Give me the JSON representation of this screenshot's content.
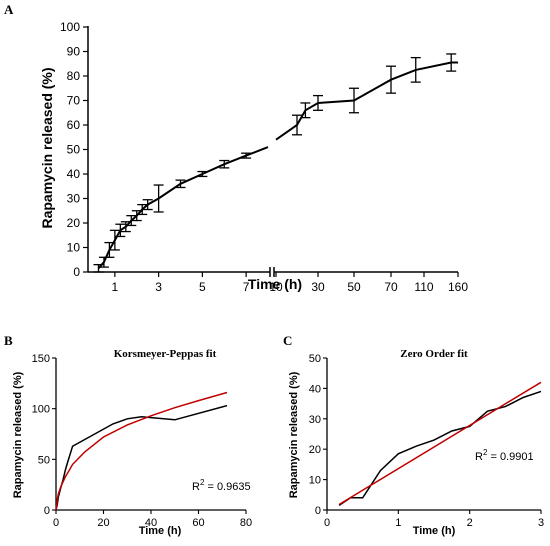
{
  "chart_data": [
    {
      "panel": "A",
      "type": "line",
      "title": "",
      "xlabel": "Time (h)",
      "ylabel": "Rapamycin released (%)",
      "ylim": [
        0,
        100
      ],
      "yticks": [
        0,
        10,
        20,
        30,
        40,
        50,
        60,
        70,
        80,
        90,
        100
      ],
      "axis_break": true,
      "segment1": {
        "xlim": [
          0,
          8
        ],
        "xticks": [
          1,
          3,
          5,
          7
        ],
        "points": [
          {
            "x": 0.25,
            "y": 1.5,
            "err": 1.5
          },
          {
            "x": 0.5,
            "y": 4,
            "err": 2
          },
          {
            "x": 0.75,
            "y": 9,
            "err": 3
          },
          {
            "x": 1,
            "y": 13,
            "err": 4
          },
          {
            "x": 1.25,
            "y": 17,
            "err": 2.5
          },
          {
            "x": 1.5,
            "y": 18.5,
            "err": 2
          },
          {
            "x": 1.75,
            "y": 21,
            "err": 2
          },
          {
            "x": 2,
            "y": 23,
            "err": 2
          },
          {
            "x": 2.25,
            "y": 25.5,
            "err": 2
          },
          {
            "x": 2.5,
            "y": 27.5,
            "err": 2
          },
          {
            "x": 3,
            "y": 30,
            "err": 5.5
          },
          {
            "x": 4,
            "y": 36,
            "err": 1.5
          },
          {
            "x": 5,
            "y": 40,
            "err": 1
          },
          {
            "x": 6,
            "y": 44,
            "err": 1.5
          },
          {
            "x": 7,
            "y": 47.5,
            "err": 1
          },
          {
            "x": 8,
            "y": 51,
            "err": 0
          }
        ]
      },
      "segment2": {
        "xlim": [
          10,
          160
        ],
        "xticks": [
          10,
          30,
          50,
          70,
          110,
          160
        ],
        "points": [
          {
            "x": 10,
            "y": 54,
            "err": 0
          },
          {
            "x": 20,
            "y": 60,
            "err": 4
          },
          {
            "x": 24,
            "y": 66,
            "err": 3
          },
          {
            "x": 30,
            "y": 69,
            "err": 3
          },
          {
            "x": 50,
            "y": 70,
            "err": 5
          },
          {
            "x": 70,
            "y": 78.5,
            "err": 5.5
          },
          {
            "x": 100,
            "y": 82.5,
            "err": 5
          },
          {
            "x": 150,
            "y": 85.5,
            "err": 3.5
          },
          {
            "x": 160,
            "y": 85.5,
            "err": 0
          }
        ]
      }
    },
    {
      "panel": "B",
      "type": "line",
      "title": "Korsmeyer-Peppas fit",
      "xlabel": "Time (h)",
      "ylabel": "Rapamycin released (%)",
      "xlim": [
        0,
        80
      ],
      "ylim": [
        0,
        150
      ],
      "xticks": [
        0,
        20,
        40,
        60,
        80
      ],
      "yticks": [
        0,
        50,
        100,
        150
      ],
      "annotation": {
        "prefix": "R",
        "superscript": "2",
        "suffix": " = 0.9635"
      },
      "series": [
        {
          "color": "#000000",
          "x": [
            0,
            0.5,
            1,
            2,
            3,
            4,
            5,
            7,
            24,
            30,
            36,
            50,
            72
          ],
          "y": [
            0,
            5,
            13,
            22,
            30,
            40,
            48,
            63,
            85,
            90,
            92,
            89,
            103
          ]
        },
        {
          "color": "#c00000",
          "x": [
            0,
            0.5,
            1,
            2,
            4,
            7,
            12,
            20,
            30,
            40,
            50,
            60,
            72
          ],
          "y": [
            0,
            10,
            16,
            23,
            33,
            45,
            57,
            72,
            84,
            93,
            101,
            108,
            116
          ]
        }
      ]
    },
    {
      "panel": "C",
      "type": "line",
      "title": "Zero Order fit",
      "xlabel": "Time (h)",
      "ylabel": "Rapamycin released (%)",
      "xlim": [
        0,
        3
      ],
      "ylim": [
        0,
        50
      ],
      "xticks": [
        0,
        1,
        2,
        3
      ],
      "yticks": [
        0,
        10,
        20,
        30,
        40,
        50
      ],
      "annotation": {
        "prefix": "R",
        "superscript": "2",
        "suffix": " = 0.9901"
      },
      "series": [
        {
          "color": "#000000",
          "x": [
            0.17,
            0.33,
            0.5,
            0.75,
            1,
            1.25,
            1.5,
            1.75,
            2,
            2.25,
            2.5,
            2.75,
            3
          ],
          "y": [
            1.5,
            4,
            4,
            13,
            18.5,
            21,
            23,
            26,
            27.5,
            32.5,
            34,
            37,
            39
          ]
        },
        {
          "color": "#c00000",
          "x": [
            0.17,
            3
          ],
          "y": [
            1.8,
            42
          ]
        }
      ]
    }
  ],
  "panel_labels": [
    "A",
    "B",
    "C"
  ]
}
